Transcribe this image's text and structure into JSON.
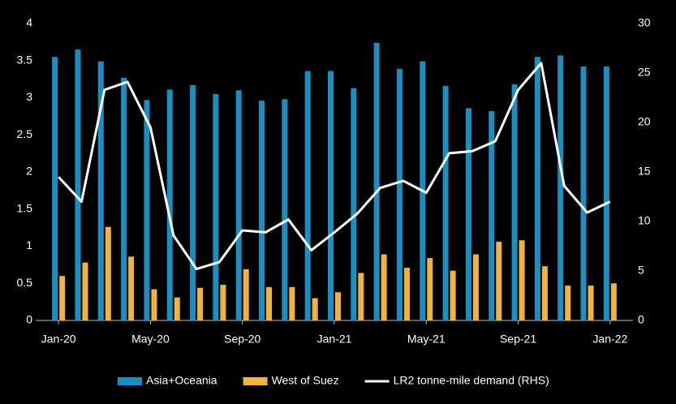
{
  "chart_data": {
    "type": "bar-line",
    "categories": [
      "Jan-20",
      null,
      null,
      null,
      "May-20",
      null,
      null,
      null,
      "Sep-20",
      null,
      null,
      null,
      "Jan-21",
      null,
      null,
      null,
      "May-21",
      null,
      null,
      null,
      "Sep-21",
      null,
      null,
      null,
      "Jan-22"
    ],
    "series": [
      {
        "name": "Asia+Oceania",
        "type": "bar",
        "color": "#1b8ec2",
        "values": [
          3.55,
          3.65,
          3.49,
          3.27,
          2.97,
          3.11,
          3.17,
          3.05,
          3.1,
          2.96,
          2.98,
          3.36,
          3.36,
          3.13,
          3.74,
          3.39,
          3.49,
          3.16,
          2.86,
          2.82,
          3.18,
          3.55,
          3.57,
          3.42,
          3.42
        ]
      },
      {
        "name": "West of Suez",
        "type": "bar",
        "color": "#f0b43c",
        "values": [
          0.6,
          0.78,
          1.26,
          0.86,
          0.42,
          0.31,
          0.44,
          0.48,
          0.69,
          0.45,
          0.45,
          0.3,
          0.38,
          0.64,
          0.89,
          0.71,
          0.84,
          0.67,
          0.89,
          1.06,
          1.08,
          0.73,
          0.47,
          0.47,
          0.5
        ]
      },
      {
        "name": "LR2 tonne-mile demand (RHS)",
        "type": "line",
        "axis": "y2",
        "color": "#ffffff",
        "values": [
          14.5,
          12.0,
          23.3,
          24.1,
          19.5,
          8.6,
          5.2,
          5.9,
          9.1,
          8.9,
          10.2,
          7.1,
          8.9,
          10.8,
          13.4,
          14.1,
          12.9,
          16.9,
          17.1,
          18.1,
          23.3,
          26.0,
          13.6,
          10.9,
          12.0
        ]
      }
    ],
    "ylim": [
      0,
      4
    ],
    "yticks": [
      0,
      0.5,
      1,
      1.5,
      2,
      2.5,
      3,
      3.5,
      4
    ],
    "y2lim": [
      0,
      30
    ],
    "y2ticks": [
      0,
      5,
      10,
      15,
      20,
      25,
      30
    ],
    "grid": false,
    "legend": "bottom"
  }
}
